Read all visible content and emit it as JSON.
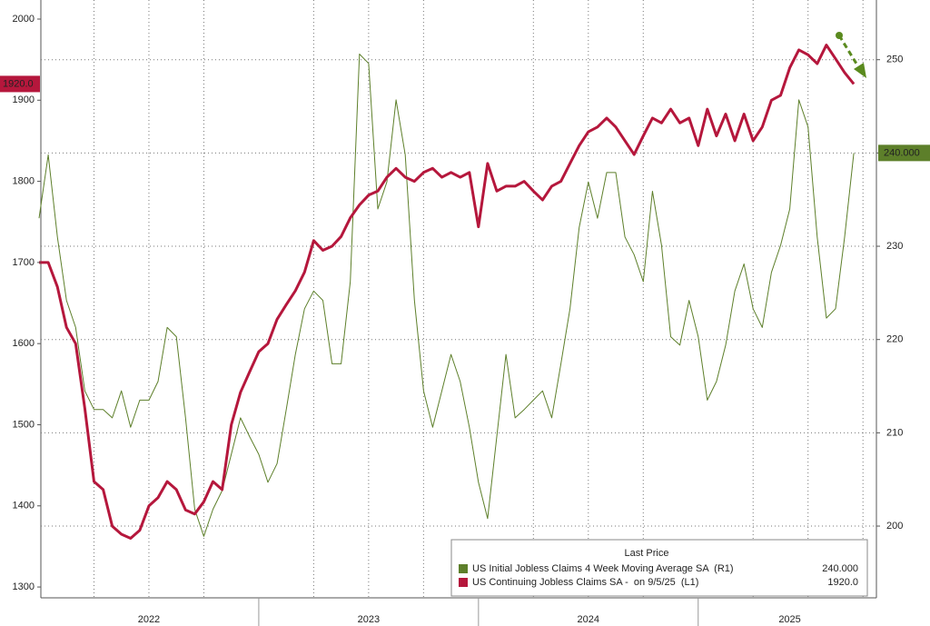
{
  "chart_data": {
    "type": "line",
    "categories": [
      null,
      null,
      null,
      null,
      null,
      null,
      null,
      null,
      null,
      null,
      null,
      null,
      "2022",
      null,
      null,
      null,
      null,
      null,
      null,
      null,
      null,
      null,
      null,
      null,
      null,
      null,
      null,
      null,
      null,
      null,
      null,
      null,
      null,
      null,
      null,
      null,
      "2023",
      null,
      null,
      null,
      null,
      null,
      null,
      null,
      null,
      null,
      null,
      null,
      null,
      null,
      null,
      null,
      null,
      null,
      null,
      null,
      null,
      null,
      null,
      null,
      "2024",
      null,
      null,
      null,
      null,
      null,
      null,
      null,
      null,
      null,
      null,
      null,
      null,
      null,
      null,
      null,
      null,
      null,
      null,
      null,
      null,
      null,
      "2025",
      null,
      null,
      null,
      null,
      null,
      null,
      null
    ],
    "legend_title": "Last Price",
    "series": [
      {
        "name": "US Initial Jobless Claims 4 Week Moving Average SA  (R1)",
        "color": "#5d7f2a",
        "axis": "y2",
        "last_label": "240.000",
        "values": [
          233,
          239.8,
          231,
          224.2,
          221.3,
          214.5,
          212.5,
          212.5,
          211.6,
          214.5,
          210.6,
          213.5,
          213.5,
          215.5,
          221.3,
          220.3,
          211.6,
          201.8,
          198.9,
          201.8,
          203.8,
          207.7,
          211.6,
          209.6,
          207.7,
          204.7,
          206.7,
          212.5,
          218.4,
          223.3,
          225.2,
          224.2,
          217.4,
          217.4,
          226.2,
          250.6,
          249.6,
          234,
          236.9,
          245.7,
          239.8,
          224.2,
          214.5,
          210.6,
          214.5,
          218.4,
          215.5,
          210.6,
          204.7,
          200.8,
          209.6,
          218.4,
          211.6,
          212.5,
          213.5,
          214.5,
          211.6,
          217.4,
          223.3,
          232,
          236.9,
          233,
          237.9,
          237.9,
          231,
          229.1,
          226.2,
          235.9,
          230.1,
          220.3,
          219.4,
          224.2,
          220.3,
          213.5,
          215.5,
          219.4,
          225.2,
          228.1,
          223.3,
          221.3,
          227.2,
          230.1,
          234,
          245.7,
          242.8,
          231,
          222.3,
          223.3,
          231,
          240
        ]
      },
      {
        "name": "US Continuing Jobless Claims SA -  on 9/5/25  (L1)",
        "color": "#b5173c",
        "axis": "y",
        "last_label": "1920.0",
        "values": [
          1700,
          1700,
          1670,
          1620,
          1600,
          1520,
          1430,
          1420,
          1375,
          1365,
          1360,
          1370,
          1400,
          1410,
          1430,
          1420,
          1395,
          1390,
          1405,
          1430,
          1420,
          1500,
          1540,
          1565,
          1590,
          1600,
          1630,
          1648,
          1665,
          1688,
          1727,
          1715,
          1720,
          1732,
          1755,
          1771,
          1783,
          1788,
          1805,
          1816,
          1805,
          1800,
          1811,
          1816,
          1805,
          1811,
          1805,
          1811,
          1744,
          1822,
          1788,
          1794,
          1794,
          1800,
          1788,
          1777,
          1794,
          1800,
          1822,
          1844,
          1861,
          1867,
          1878,
          1867,
          1850,
          1833,
          1856,
          1878,
          1872,
          1889,
          1872,
          1878,
          1844,
          1889,
          1856,
          1883,
          1850,
          1883,
          1850,
          1867,
          1900,
          1906,
          1940,
          1962,
          1956,
          1945,
          1968,
          1951,
          1934,
          1920
        ]
      }
    ],
    "ylim": [
      1290,
      2023.5
    ],
    "yticks": [
      1300,
      1400,
      1500,
      1600,
      1700,
      1800,
      1900,
      2000
    ],
    "y2lim": [
      192.6,
      256.4
    ],
    "y2ticks": [
      200,
      210,
      220,
      230,
      240,
      250
    ],
    "grid": true
  }
}
